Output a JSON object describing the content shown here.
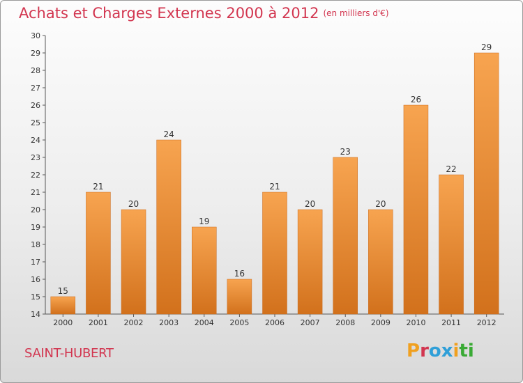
{
  "header": {
    "title": "Achats et Charges Externes 2000 à 2012",
    "unit": "(en milliers d'€)"
  },
  "footer": {
    "commune": "SAINT-HUBERT",
    "logo_text": "Proxiti"
  },
  "colors": {
    "title": "#d2354f",
    "bar_top": "#f7a450",
    "bar_bottom": "#d2711c",
    "logo": [
      "#f0a020",
      "#d2354f",
      "#2f9fd8",
      "#2f9fd8",
      "#f0a020",
      "#3aaa35",
      "#3aaa35"
    ]
  },
  "chart_data": {
    "type": "bar",
    "title": "Achats et Charges Externes 2000 à 2012",
    "subtitle": "(en milliers d'€)",
    "categories": [
      "2000",
      "2001",
      "2002",
      "2003",
      "2004",
      "2005",
      "2006",
      "2007",
      "2008",
      "2009",
      "2010",
      "2011",
      "2012"
    ],
    "values": [
      15,
      21,
      20,
      24,
      19,
      16,
      21,
      20,
      23,
      20,
      26,
      22,
      29
    ],
    "ylim": [
      14,
      30
    ],
    "yticks": [
      14,
      15,
      16,
      17,
      18,
      19,
      20,
      21,
      22,
      23,
      24,
      25,
      26,
      27,
      28,
      29,
      30
    ],
    "grid": false,
    "data_labels": true
  }
}
